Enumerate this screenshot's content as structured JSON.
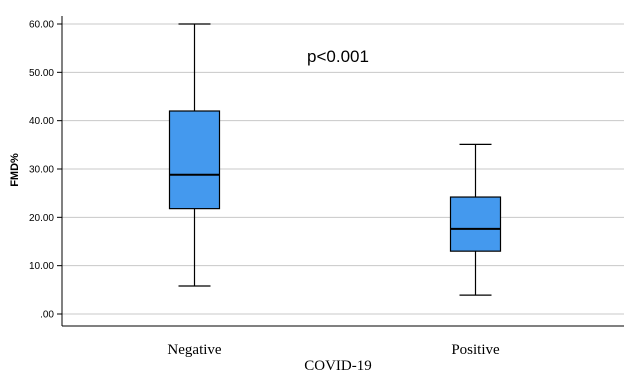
{
  "chart_data": {
    "type": "boxplot",
    "xlabel": "COVID-19",
    "ylabel": "FMD%",
    "ylim": [
      0,
      60
    ],
    "yticks": [
      ".00",
      "10.00",
      "20.00",
      "30.00",
      "40.00",
      "50.00",
      "60.00"
    ],
    "grid": true,
    "annotation": "p<0.001",
    "box_color": "#4499ee",
    "categories": [
      "Negative",
      "Positive"
    ],
    "boxes": [
      {
        "category": "Negative",
        "min": 5.8,
        "q1": 21.8,
        "median": 28.8,
        "q3": 42.0,
        "max": 60.0
      },
      {
        "category": "Positive",
        "min": 3.9,
        "q1": 13.0,
        "median": 17.6,
        "q3": 24.2,
        "max": 35.1
      }
    ]
  }
}
